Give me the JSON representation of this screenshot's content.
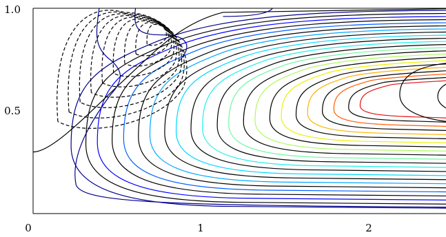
{
  "chart_data": {
    "type": "contour",
    "title": "",
    "xlabel": "",
    "ylabel": "",
    "xlim": [
      0,
      2.5
    ],
    "ylim": [
      0,
      1.0
    ],
    "x_ticks": [
      {
        "value": 0,
        "label": "0"
      },
      {
        "value": 1,
        "label": "1"
      },
      {
        "value": 2,
        "label": "2"
      }
    ],
    "y_ticks": [
      {
        "value": 0.5,
        "label": "0.5"
      },
      {
        "value": 1.0,
        "label": "1.0"
      }
    ],
    "grid": false,
    "negative_contours": {
      "style": "dashed",
      "color": "#000000",
      "count": 9
    },
    "colored_contours": {
      "style": "solid",
      "colors": [
        "#00008f",
        "#0000ff",
        "#0060ff",
        "#00a8ff",
        "#00d8ff",
        "#20f0e8",
        "#6cf8a0",
        "#b0f860",
        "#ecf000",
        "#ffb000",
        "#ff5a00",
        "#e01010"
      ],
      "interleaved_black_levels": 12
    }
  }
}
